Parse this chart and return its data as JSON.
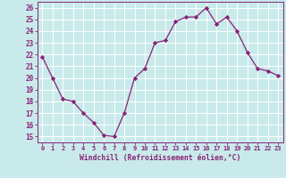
{
  "x": [
    0,
    1,
    2,
    3,
    4,
    5,
    6,
    7,
    8,
    9,
    10,
    11,
    12,
    13,
    14,
    15,
    16,
    17,
    18,
    19,
    20,
    21,
    22,
    23
  ],
  "y": [
    21.8,
    20.0,
    18.2,
    18.0,
    17.0,
    16.2,
    15.1,
    15.0,
    17.0,
    20.0,
    20.8,
    23.0,
    23.2,
    24.8,
    25.2,
    25.2,
    26.0,
    24.6,
    25.2,
    24.0,
    22.2,
    20.8,
    20.6,
    20.2
  ],
  "xlabel": "Windchill (Refroidissement éolien,°C)",
  "ylim": [
    14.5,
    26.5
  ],
  "xlim": [
    -0.5,
    23.5
  ],
  "yticks": [
    15,
    16,
    17,
    18,
    19,
    20,
    21,
    22,
    23,
    24,
    25,
    26
  ],
  "xticks": [
    0,
    1,
    2,
    3,
    4,
    5,
    6,
    7,
    8,
    9,
    10,
    11,
    12,
    13,
    14,
    15,
    16,
    17,
    18,
    19,
    20,
    21,
    22,
    23
  ],
  "line_color": "#882277",
  "marker_color": "#882277",
  "bg_color": "#c8eaea",
  "grid_color": "#ffffff",
  "tick_label_color": "#882277",
  "axis_label_color": "#882277"
}
